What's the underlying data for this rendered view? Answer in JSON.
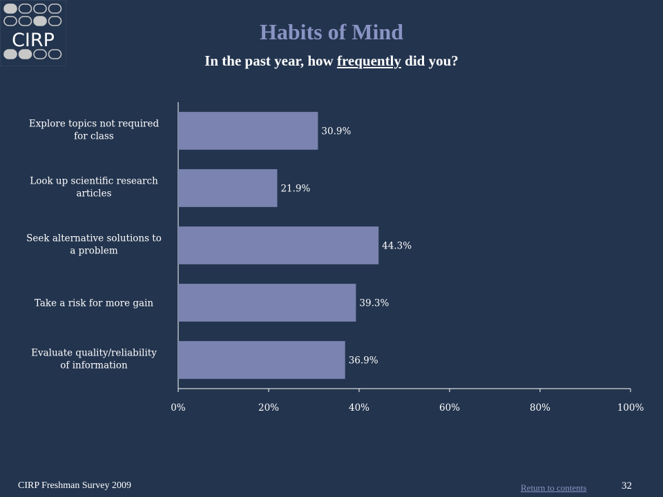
{
  "slide": {
    "title": "Habits of Mind",
    "subtitle_before": "In the past year, how ",
    "subtitle_underlined": "frequently",
    "subtitle_after": " did you?",
    "footer_text": "CIRP Freshman Survey 2009",
    "return_link": "Return to contents",
    "page_number": "32",
    "logo_text": "CIRP"
  },
  "colors": {
    "background": "#23344e",
    "bar": "#7b83b0",
    "title": "#8a94c4",
    "logo_gray": "#c8c8c8"
  },
  "chart_data": {
    "type": "bar",
    "orientation": "horizontal",
    "categories": [
      [
        "Explore topics not required",
        "for class"
      ],
      [
        "Look up scientific research",
        "articles"
      ],
      [
        "Seek alternative solutions to",
        "a problem"
      ],
      [
        "Take a risk for more gain"
      ],
      [
        "Evaluate quality/reliability",
        "of information"
      ]
    ],
    "values": [
      30.9,
      21.9,
      44.3,
      39.3,
      36.9
    ],
    "value_labels": [
      "30.9%",
      "21.9%",
      "44.3%",
      "39.3%",
      "36.9%"
    ],
    "xlim": [
      0,
      100
    ],
    "xticks": [
      0,
      20,
      40,
      60,
      80,
      100
    ],
    "xtick_labels": [
      "0%",
      "20%",
      "40%",
      "60%",
      "80%",
      "100%"
    ],
    "grid": false,
    "legend": "none"
  }
}
